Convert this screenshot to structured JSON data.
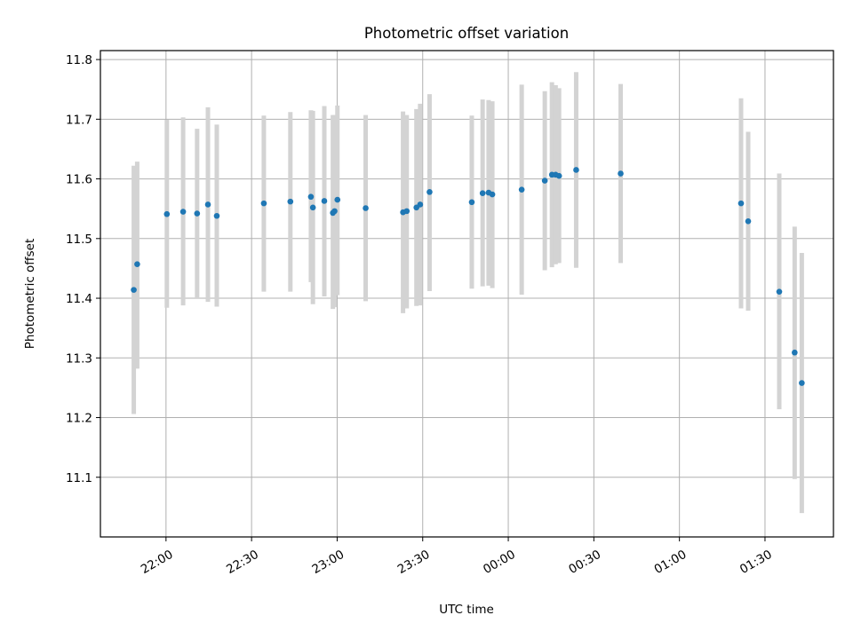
{
  "chart_data": {
    "type": "scatter",
    "title": "Photometric offset variation",
    "xlabel": "UTC time",
    "ylabel": "Photometric offset",
    "grid": true,
    "x_unit": "minutes relative to 00:00 UTC",
    "x_ticks": [
      {
        "value": -120,
        "label": "22:00"
      },
      {
        "value": -90,
        "label": "22:30"
      },
      {
        "value": -60,
        "label": "23:00"
      },
      {
        "value": -30,
        "label": "23:30"
      },
      {
        "value": 0,
        "label": "00:00"
      },
      {
        "value": 30,
        "label": "00:30"
      },
      {
        "value": 60,
        "label": "01:00"
      },
      {
        "value": 90,
        "label": "01:30"
      }
    ],
    "y_ticks": [
      11.1,
      11.2,
      11.3,
      11.4,
      11.5,
      11.6,
      11.7,
      11.8
    ],
    "xlim": [
      -143,
      114
    ],
    "ylim": [
      11.0,
      11.815
    ],
    "colors": {
      "point": "#1f77b4",
      "errorbar": "#d3d3d3"
    },
    "series": [
      {
        "points": [
          {
            "x": -131.3,
            "y": 11.414,
            "lo": 11.206,
            "hi": 11.622
          },
          {
            "x": -130.1,
            "y": 11.457,
            "lo": 11.282,
            "hi": 11.629
          },
          {
            "x": -119.7,
            "y": 11.541,
            "lo": 11.384,
            "hi": 11.699
          },
          {
            "x": -114.0,
            "y": 11.545,
            "lo": 11.388,
            "hi": 11.703
          },
          {
            "x": -109.1,
            "y": 11.542,
            "lo": 11.4,
            "hi": 11.684
          },
          {
            "x": -105.3,
            "y": 11.557,
            "lo": 11.394,
            "hi": 11.72
          },
          {
            "x": -102.2,
            "y": 11.538,
            "lo": 11.386,
            "hi": 11.691
          },
          {
            "x": -85.7,
            "y": 11.559,
            "lo": 11.411,
            "hi": 11.706
          },
          {
            "x": -76.4,
            "y": 11.562,
            "lo": 11.411,
            "hi": 11.712
          },
          {
            "x": -69.2,
            "y": 11.57,
            "lo": 11.427,
            "hi": 11.715
          },
          {
            "x": -68.5,
            "y": 11.552,
            "lo": 11.39,
            "hi": 11.714
          },
          {
            "x": -64.5,
            "y": 11.563,
            "lo": 11.403,
            "hi": 11.722
          },
          {
            "x": -61.5,
            "y": 11.543,
            "lo": 11.382,
            "hi": 11.707
          },
          {
            "x": -60.9,
            "y": 11.546,
            "lo": 11.385,
            "hi": 11.707
          },
          {
            "x": -59.9,
            "y": 11.565,
            "lo": 11.405,
            "hi": 11.723
          },
          {
            "x": -50.0,
            "y": 11.551,
            "lo": 11.395,
            "hi": 11.707
          },
          {
            "x": -36.9,
            "y": 11.544,
            "lo": 11.375,
            "hi": 11.713
          },
          {
            "x": -35.6,
            "y": 11.546,
            "lo": 11.383,
            "hi": 11.707
          },
          {
            "x": -32.2,
            "y": 11.552,
            "lo": 11.387,
            "hi": 11.717
          },
          {
            "x": -30.9,
            "y": 11.557,
            "lo": 11.388,
            "hi": 11.726
          },
          {
            "x": -27.6,
            "y": 11.578,
            "lo": 11.412,
            "hi": 11.742
          },
          {
            "x": -12.8,
            "y": 11.561,
            "lo": 11.416,
            "hi": 11.706
          },
          {
            "x": -9.0,
            "y": 11.576,
            "lo": 11.42,
            "hi": 11.733
          },
          {
            "x": -6.9,
            "y": 11.577,
            "lo": 11.421,
            "hi": 11.732
          },
          {
            "x": -5.6,
            "y": 11.574,
            "lo": 11.417,
            "hi": 11.73
          },
          {
            "x": 4.7,
            "y": 11.582,
            "lo": 11.406,
            "hi": 11.758
          },
          {
            "x": 12.8,
            "y": 11.597,
            "lo": 11.447,
            "hi": 11.747
          },
          {
            "x": 15.3,
            "y": 11.607,
            "lo": 11.452,
            "hi": 11.762
          },
          {
            "x": 16.6,
            "y": 11.607,
            "lo": 11.457,
            "hi": 11.757
          },
          {
            "x": 17.8,
            "y": 11.605,
            "lo": 11.459,
            "hi": 11.752
          },
          {
            "x": 23.8,
            "y": 11.615,
            "lo": 11.451,
            "hi": 11.779
          },
          {
            "x": 39.4,
            "y": 11.609,
            "lo": 11.459,
            "hi": 11.759
          },
          {
            "x": 81.6,
            "y": 11.559,
            "lo": 11.383,
            "hi": 11.735
          },
          {
            "x": 84.1,
            "y": 11.529,
            "lo": 11.379,
            "hi": 11.679
          },
          {
            "x": 95.0,
            "y": 11.411,
            "lo": 11.214,
            "hi": 11.609
          },
          {
            "x": 100.4,
            "y": 11.309,
            "lo": 11.097,
            "hi": 11.52
          },
          {
            "x": 102.9,
            "y": 11.258,
            "lo": 11.04,
            "hi": 11.476
          }
        ]
      }
    ]
  }
}
